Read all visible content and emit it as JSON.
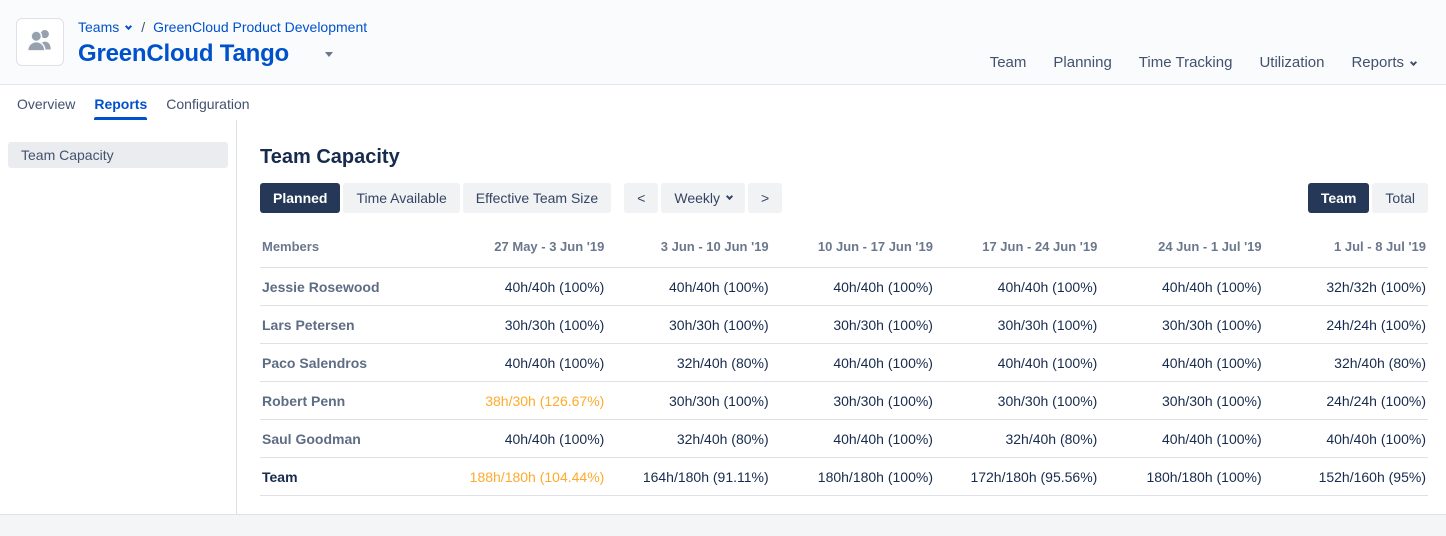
{
  "header": {
    "breadcrumb": {
      "teams": "Teams",
      "separator": "/",
      "parent": "GreenCloud Product Development"
    },
    "title": "GreenCloud Tango",
    "nav": [
      {
        "label": "Team",
        "has_dropdown": false
      },
      {
        "label": "Planning",
        "has_dropdown": false
      },
      {
        "label": "Time Tracking",
        "has_dropdown": false
      },
      {
        "label": "Utilization",
        "has_dropdown": false
      },
      {
        "label": "Reports",
        "has_dropdown": true
      }
    ]
  },
  "tabs": [
    {
      "label": "Overview",
      "active": false
    },
    {
      "label": "Reports",
      "active": true
    },
    {
      "label": "Configuration",
      "active": false
    }
  ],
  "sidebar": {
    "items": [
      {
        "label": "Team Capacity",
        "selected": true
      }
    ]
  },
  "main": {
    "title": "Team Capacity",
    "view_buttons": [
      {
        "label": "Planned",
        "active": true
      },
      {
        "label": "Time Available",
        "active": false
      },
      {
        "label": "Effective Team Size",
        "active": false
      }
    ],
    "period": {
      "prev": "<",
      "label": "Weekly",
      "next": ">"
    },
    "scope_toggle": [
      {
        "label": "Team",
        "active": true
      },
      {
        "label": "Total",
        "active": false
      }
    ]
  },
  "table": {
    "columns": [
      "Members",
      "27 May - 3 Jun '19",
      "3 Jun - 10 Jun '19",
      "10 Jun - 17 Jun '19",
      "17 Jun - 24 Jun '19",
      "24 Jun - 1 Jul '19",
      "1 Jul - 8 Jul '19"
    ],
    "rows": [
      {
        "name": "Jessie Rosewood",
        "is_total": false,
        "highlight_cols": [],
        "values": [
          "40h/40h (100%)",
          "40h/40h (100%)",
          "40h/40h (100%)",
          "40h/40h (100%)",
          "40h/40h (100%)",
          "32h/32h (100%)"
        ]
      },
      {
        "name": "Lars Petersen",
        "is_total": false,
        "highlight_cols": [],
        "values": [
          "30h/30h (100%)",
          "30h/30h (100%)",
          "30h/30h (100%)",
          "30h/30h (100%)",
          "30h/30h (100%)",
          "24h/24h (100%)"
        ]
      },
      {
        "name": "Paco Salendros",
        "is_total": false,
        "highlight_cols": [],
        "values": [
          "40h/40h (100%)",
          "32h/40h (80%)",
          "40h/40h (100%)",
          "40h/40h (100%)",
          "40h/40h (100%)",
          "32h/40h (80%)"
        ]
      },
      {
        "name": "Robert Penn",
        "is_total": false,
        "highlight_cols": [
          0
        ],
        "values": [
          "38h/30h (126.67%)",
          "30h/30h (100%)",
          "30h/30h (100%)",
          "30h/30h (100%)",
          "30h/30h (100%)",
          "24h/24h (100%)"
        ]
      },
      {
        "name": "Saul Goodman",
        "is_total": false,
        "highlight_cols": [],
        "values": [
          "40h/40h (100%)",
          "32h/40h (80%)",
          "40h/40h (100%)",
          "32h/40h (80%)",
          "40h/40h (100%)",
          "40h/40h (100%)"
        ]
      },
      {
        "name": "Team",
        "is_total": true,
        "highlight_cols": [
          0
        ],
        "values": [
          "188h/180h (104.44%)",
          "164h/180h (91.11%)",
          "180h/180h (100%)",
          "172h/180h (95.56%)",
          "180h/180h (100%)",
          "152h/160h (95%)"
        ]
      }
    ]
  },
  "colors": {
    "accent_blue": "#0052CC",
    "active_navy": "#253858",
    "warning_orange": "#FFAB2B",
    "selected_gray": "#EBECF0"
  }
}
